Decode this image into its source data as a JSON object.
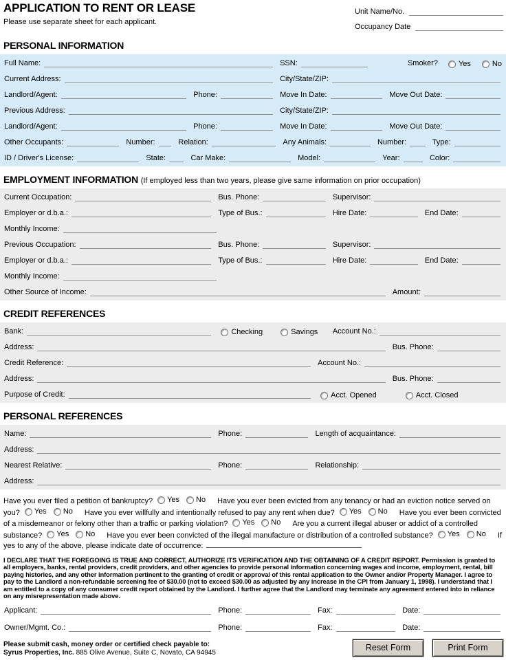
{
  "colors": {
    "section_blue": "#d6ebf7",
    "section_gray": "#ececec",
    "line": "#8e8e8e",
    "button_face": "#d6d2ca"
  },
  "header": {
    "title": "APPLICATION TO RENT OR LEASE",
    "subtitle": "Please use separate sheet for each applicant.",
    "unit_label": "Unit Name/No.",
    "occupancy_label": "Occupancy Date"
  },
  "form_sections": [
    {
      "id": "personal",
      "title": "PERSONAL INFORMATION",
      "note": "",
      "bg": "blue",
      "rows": [
        {
          "cells": [
            {
              "lab": "Full Name:",
              "w": "55.4%",
              "line": true
            },
            {
              "lab": "SSN:",
              "w": "19%",
              "line": true
            },
            {
              "lab": "Smoker?",
              "w": "25.6%",
              "radios": [
                "Yes",
                "No"
              ],
              "align": "end"
            }
          ]
        },
        {
          "cells": [
            {
              "lab": "Current Address:",
              "w": "55.4%",
              "line": true
            },
            {
              "lab": "City/State/ZIP:",
              "w": "44.6%",
              "line": true
            }
          ]
        },
        {
          "cells": [
            {
              "lab": "Landlord/Agent:",
              "w": "38%",
              "line": true
            },
            {
              "lab": "Phone:",
              "w": "17.4%",
              "line": true
            },
            {
              "lab": "Move In Date:",
              "w": "22%",
              "line": true
            },
            {
              "lab": "Move Out Date:",
              "w": "22.6%",
              "line": true
            }
          ]
        },
        {
          "cells": [
            {
              "lab": "Previous Address:",
              "w": "55.4%",
              "line": true
            },
            {
              "lab": "City/State/ZIP:",
              "w": "44.6%",
              "line": true
            }
          ]
        },
        {
          "cells": [
            {
              "lab": "Landlord/Agent:",
              "w": "38%",
              "line": true
            },
            {
              "lab": "Phone:",
              "w": "17.4%",
              "line": true
            },
            {
              "lab": "Move In Date:",
              "w": "22%",
              "line": true
            },
            {
              "lab": "Move Out Date:",
              "w": "22.6%",
              "line": true
            }
          ]
        },
        {
          "cells": [
            {
              "lab": "Other Occupants:",
              "w": "24.5%",
              "line": true
            },
            {
              "lab": "Number:",
              "w": "10.5%",
              "line": true
            },
            {
              "lab": "Relation:",
              "w": "21%",
              "line": true
            },
            {
              "lab": "Any Animals:",
              "w": "19%",
              "line": true
            },
            {
              "lab": "Number:",
              "w": "11%",
              "line": true
            },
            {
              "lab": "Type:",
              "w": "14%",
              "line": true
            }
          ]
        },
        {
          "cells": [
            {
              "lab": "ID / Driver's License:",
              "w": "28.5%",
              "line": true
            },
            {
              "lab": "State:",
              "w": "9%",
              "line": true
            },
            {
              "lab": "Car Make:",
              "w": "21.5%",
              "line": true
            },
            {
              "lab": "Model:",
              "w": "17%",
              "line": true
            },
            {
              "lab": "Year:",
              "w": "9.5%",
              "line": true
            },
            {
              "lab": "Color:",
              "w": "14.5%",
              "line": true
            }
          ]
        }
      ]
    },
    {
      "id": "employment",
      "title": "EMPLOYMENT INFORMATION",
      "note": "(If employed less than two years, please give same information on prior occupation)",
      "bg": "gray",
      "rows": [
        {
          "cells": [
            {
              "lab": "Current Occupation:",
              "w": "43%",
              "line": true
            },
            {
              "lab": "Bus. Phone:",
              "w": "23%",
              "line": true
            },
            {
              "lab": "Supervisor:",
              "w": "34%",
              "line": true
            }
          ]
        },
        {
          "cells": [
            {
              "lab": "Employer or d.b.a.:",
              "w": "43%",
              "line": true
            },
            {
              "lab": "Type of Bus.:",
              "w": "23%",
              "line": true
            },
            {
              "lab": "Hire Date:",
              "w": "18.5%",
              "line": true
            },
            {
              "lab": "End Date:",
              "w": "15.5%",
              "line": true
            }
          ]
        },
        {
          "cells": [
            {
              "lab": "Monthly Income:",
              "w": "43%",
              "line": true
            }
          ]
        },
        {
          "cells": [
            {
              "lab": "Previous Occupation:",
              "w": "43%",
              "line": true
            },
            {
              "lab": "Bus. Phone:",
              "w": "23%",
              "line": true
            },
            {
              "lab": "Supervisor:",
              "w": "34%",
              "line": true
            }
          ]
        },
        {
          "cells": [
            {
              "lab": "Employer or d.b.a.:",
              "w": "43%",
              "line": true
            },
            {
              "lab": "Type of Bus.:",
              "w": "23%",
              "line": true
            },
            {
              "lab": "Hire Date:",
              "w": "18.5%",
              "line": true
            },
            {
              "lab": "End Date:",
              "w": "15.5%",
              "line": true
            }
          ]
        },
        {
          "cells": [
            {
              "lab": "Monthly Income:",
              "w": "43%",
              "line": true
            }
          ]
        },
        {
          "cells": [
            {
              "lab": "Other Source of Income:",
              "w": "78%",
              "line": true
            },
            {
              "lab": "Amount:",
              "w": "22%",
              "line": true
            }
          ]
        }
      ]
    },
    {
      "id": "credit",
      "title": "CREDIT REFERENCES",
      "note": "",
      "bg": "gray",
      "rows": [
        {
          "cells": [
            {
              "lab": "Bank:",
              "w": "43%",
              "line": true
            },
            {
              "lab": "",
              "w": "23%",
              "radios": [
                "Checking",
                "Savings"
              ]
            },
            {
              "lab": "Account No.:",
              "w": "34%",
              "line": true
            }
          ]
        },
        {
          "cells": [
            {
              "lab": "Address:",
              "w": "78%",
              "line": true
            },
            {
              "lab": "Bus. Phone:",
              "w": "22%",
              "line": true
            }
          ]
        },
        {
          "cells": [
            {
              "lab": "Credit Reference:",
              "w": "63%",
              "line": true
            },
            {
              "lab": "Account No.:",
              "w": "37%",
              "line": true
            }
          ]
        },
        {
          "cells": [
            {
              "lab": "Address:",
              "w": "78%",
              "line": true
            },
            {
              "lab": "Bus. Phone:",
              "w": "22%",
              "line": true
            }
          ]
        },
        {
          "cells": [
            {
              "lab": "Purpose of Credit:",
              "w": "63%",
              "line": true
            },
            {
              "lab": "",
              "w": "37%",
              "radios": [
                "Acct. Opened",
                "Acct. Closed"
              ],
              "spread": true
            }
          ]
        }
      ]
    },
    {
      "id": "references",
      "title": "PERSONAL REFERENCES",
      "note": "",
      "bg": "gray",
      "rows": [
        {
          "cells": [
            {
              "lab": "Name:",
              "w": "43%",
              "line": true
            },
            {
              "lab": "Phone:",
              "w": "19.5%",
              "line": true
            },
            {
              "lab": "Length of acquaintance:",
              "w": "37.5%",
              "line": true
            }
          ]
        },
        {
          "cells": [
            {
              "lab": "Address:",
              "w": "100%",
              "line": true
            }
          ]
        },
        {
          "cells": [
            {
              "lab": "Nearest Relative:",
              "w": "43%",
              "line": true
            },
            {
              "lab": "Phone:",
              "w": "19.5%",
              "line": true
            },
            {
              "lab": "Relationship:",
              "w": "37.5%",
              "line": true
            }
          ]
        },
        {
          "cells": [
            {
              "lab": "Address:",
              "w": "100%",
              "line": true
            }
          ]
        }
      ]
    },
    {
      "id": "signature",
      "title": "",
      "note": "",
      "bg": "none",
      "rows": [
        {
          "cells": [
            {
              "lab": "Applicant:",
              "w": "43%",
              "line": true
            },
            {
              "lab": "Phone:",
              "w": "20%",
              "line": true
            },
            {
              "lab": "Fax:",
              "w": "17%",
              "line": true
            },
            {
              "lab": "Date:",
              "w": "20%",
              "line": true
            }
          ]
        },
        {
          "cells": [
            {
              "lab": "Owner/Mgmt. Co.:",
              "w": "43%",
              "line": true
            },
            {
              "lab": "Phone:",
              "w": "20%",
              "line": true
            },
            {
              "lab": "Fax:",
              "w": "17%",
              "line": true
            },
            {
              "lab": "Date:",
              "w": "20%",
              "line": true
            }
          ]
        }
      ]
    }
  ],
  "questions": {
    "segments": [
      {
        "t": "q",
        "text": "Have you ever filed a petition of bankruptcy?"
      },
      {
        "t": "r",
        "text": "Yes"
      },
      {
        "t": "r",
        "text": "No"
      },
      {
        "t": "q",
        "text": "Have you ever been evicted from any tenancy or had an eviction notice served on you?"
      },
      {
        "t": "r",
        "text": "Yes"
      },
      {
        "t": "r",
        "text": "No"
      },
      {
        "t": "q",
        "text": "Have you ever willfully and intentionally refused to pay any rent when due?"
      },
      {
        "t": "r",
        "text": "Yes"
      },
      {
        "t": "r",
        "text": "No"
      },
      {
        "t": "q",
        "text": "Have you ever been convicted of a misdemeanor or felony other than a traffic or parking violation?"
      },
      {
        "t": "r",
        "text": "Yes"
      },
      {
        "t": "r",
        "text": "No"
      },
      {
        "t": "q",
        "text": "Are you a current illegal abuser or addict of a controlled substance?"
      },
      {
        "t": "r",
        "text": "Yes"
      },
      {
        "t": "r",
        "text": "No"
      },
      {
        "t": "q",
        "text": "Have you ever been convicted of the illegal manufacture or distribution of a controlled substance?"
      },
      {
        "t": "r",
        "text": "Yes"
      },
      {
        "t": "r",
        "text": "No"
      },
      {
        "t": "q",
        "text": "If yes to any of the above, please indicate date of occurrence:"
      },
      {
        "t": "line"
      }
    ]
  },
  "declaration": {
    "text": "I DECLARE THAT THE FOREGOING IS TRUE AND CORRECT, AUTHORIZE ITS VERIFICATION AND THE OBTAINING OF A CREDIT REPORT. Permission is granted to all employers, banks, rental providers, credit providers, and other agencies to provide personal information concerning wages and income, employment, rental, bill paying histories, and any other information pertinent to the granting of credit or approval of this rental application to the Owner and/or Property Manager. I agree to pay to the Landlord a non-refundable screening fee of $30.00 (not to exceed $30.00 as adjusted by any increase in the CPI from January 1, 1998). I understand that I am entitled to a copy of any consumer credit report obtained by the Landlord. I further agree that the Landlord may terminate any agreement entered into in reliance on any misrepresentation made above."
  },
  "footer": {
    "line1": "Please submit cash, money order or certified check payable to:",
    "company": "Syrus Properties, Inc.",
    "address": " 885 Olive Avenue, Suite C, Novato, CA 94945"
  },
  "buttons": {
    "reset": "Reset Form",
    "print": "Print Form"
  }
}
